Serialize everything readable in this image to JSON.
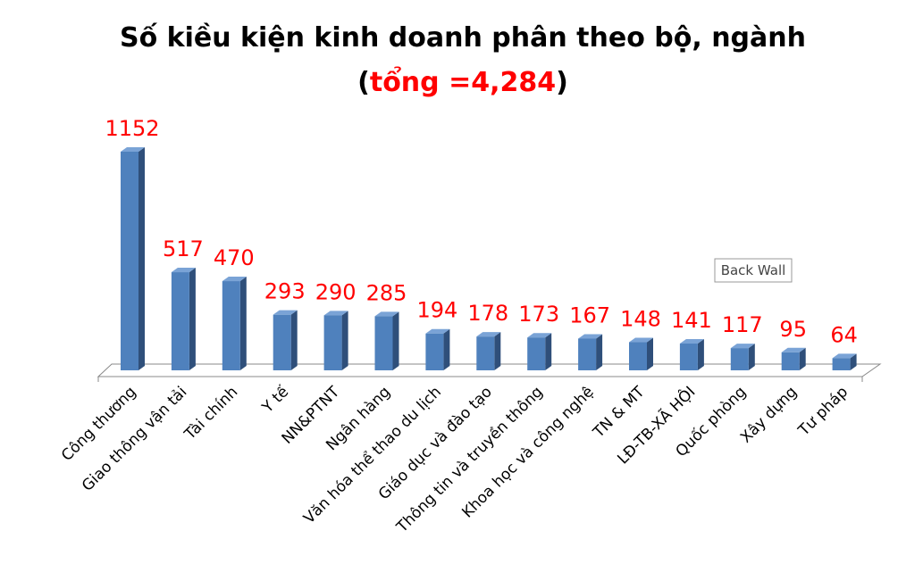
{
  "chart_data": {
    "type": "bar3d",
    "title": "Số kiều kiện kinh doanh phân theo bộ, ngành",
    "subtitle": [
      "(",
      "tổng =4,284",
      ")"
    ],
    "categories": [
      "Công thương",
      "Giao thông vận tải",
      "Tài chính",
      "Y tế",
      "NN&PTNT",
      "Ngân hàng",
      "Văn hóa thể thao du lịch",
      "Giáo dục và đào tạo",
      "Thông tin và truyền thông",
      "Khoa học và công nghệ",
      "TN & MT",
      "LĐ-TB-XÃ HỘI",
      "Quốc phòng",
      "Xây dựng",
      "Tư pháp"
    ],
    "values": [
      1152,
      517,
      470,
      293,
      290,
      285,
      194,
      178,
      173,
      167,
      148,
      141,
      117,
      95,
      64
    ],
    "color": "#4f81bd",
    "label_color": "#ff0000",
    "tooltip": "Back Wall"
  }
}
